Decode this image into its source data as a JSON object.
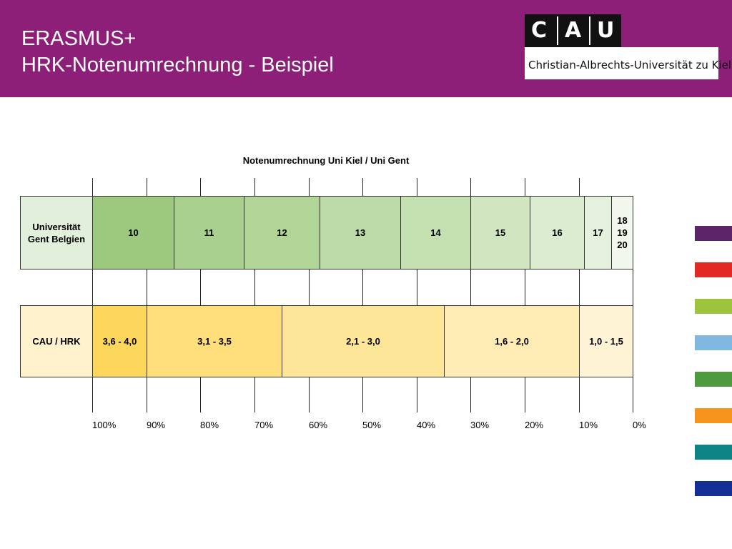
{
  "header": {
    "title_line1": "ERASMUS+",
    "title_line2": "HRK-Notenumrechnung - Beispiel"
  },
  "logo": {
    "letters": [
      "C",
      "A",
      "U"
    ],
    "name": "Christian-Albrechts-Universität zu Kiel"
  },
  "chart": {
    "title": "Notenumrechnung Uni Kiel / Uni Gent",
    "gent_row": {
      "label": "Universität\nGent Belgien",
      "grades": [
        "10",
        "11",
        "12",
        "13",
        "14",
        "15",
        "16",
        "17",
        "18\n19\n20"
      ],
      "colors": [
        "#9dc97f",
        "#a9d08e",
        "#b1d597",
        "#bcdba8",
        "#c4e0b1",
        "#d0e6c1",
        "#dbecd0",
        "#e6f1dd",
        "#f1f7ec"
      ]
    },
    "cau_row": {
      "label": "CAU / HRK",
      "grades": [
        "3,6 - 4,0",
        "3,1 - 3,5",
        "2,1 - 3,0",
        "1,6 - 2,0",
        "1,0 - 1,5"
      ],
      "colors": [
        "#fdd65c",
        "#fedf7c",
        "#fee699",
        "#feecb4",
        "#fff3d6"
      ]
    },
    "label_color": "#fff2cc",
    "label_color_gent": "#e2efda",
    "percent_ticks": [
      "100%",
      "90%",
      "80%",
      "70%",
      "60%",
      "50%",
      "40%",
      "30%",
      "20%",
      "10%",
      "0%"
    ]
  },
  "palette": [
    "#5c2468",
    "#e22a24",
    "#9dc43c",
    "#80b8e0",
    "#4e9a3e",
    "#f7941d",
    "#0f8486",
    "#132f96"
  ]
}
